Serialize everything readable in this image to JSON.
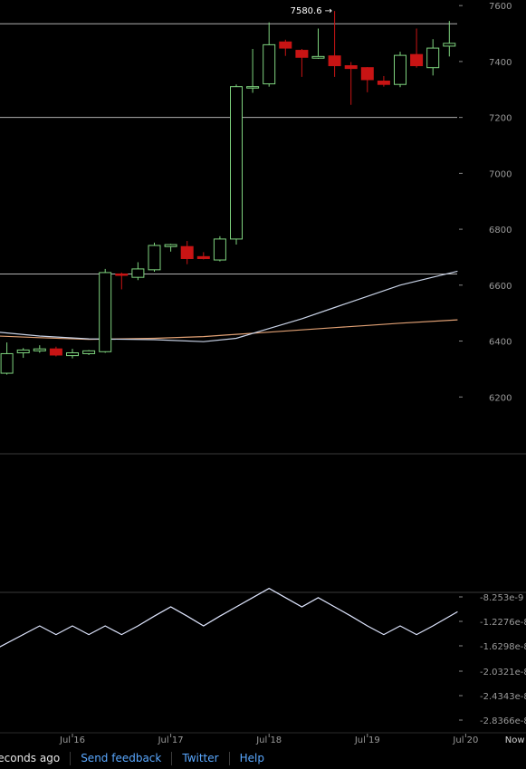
{
  "chart_data": [
    {
      "type": "candlestick",
      "title": "",
      "ylim": [
        6000,
        7620
      ],
      "yticks": [
        6200,
        6400,
        6600,
        6800,
        7000,
        7200,
        7400,
        7600
      ],
      "xticks": [
        {
          "label": "Jul 16",
          "x": 0
        },
        {
          "label": "Jul 17",
          "x": 6
        },
        {
          "label": "Jul 18",
          "x": 12
        },
        {
          "label": "Jul 19",
          "x": 18
        },
        {
          "label": "Jul 20",
          "x": 24
        },
        {
          "label": "Now",
          "x": 27
        }
      ],
      "candles": [
        {
          "x": -4,
          "o": 6285,
          "h": 6395,
          "l": 6280,
          "c": 6355
        },
        {
          "x": -3,
          "o": 6358,
          "h": 6375,
          "l": 6340,
          "c": 6368
        },
        {
          "x": -2,
          "o": 6365,
          "h": 6385,
          "l": 6358,
          "c": 6372
        },
        {
          "x": -1,
          "o": 6372,
          "h": 6380,
          "l": 6345,
          "c": 6350
        },
        {
          "x": 0,
          "o": 6348,
          "h": 6372,
          "l": 6338,
          "c": 6358
        },
        {
          "x": 1,
          "o": 6355,
          "h": 6368,
          "l": 6350,
          "c": 6365
        },
        {
          "x": 2,
          "o": 6362,
          "h": 6658,
          "l": 6358,
          "c": 6645
        },
        {
          "x": 3,
          "o": 6640,
          "h": 6645,
          "l": 6585,
          "c": 6635
        },
        {
          "x": 4,
          "o": 6628,
          "h": 6682,
          "l": 6618,
          "c": 6658
        },
        {
          "x": 5,
          "o": 6655,
          "h": 6752,
          "l": 6648,
          "c": 6742
        },
        {
          "x": 6,
          "o": 6738,
          "h": 6748,
          "l": 6720,
          "c": 6745
        },
        {
          "x": 7,
          "o": 6738,
          "h": 6758,
          "l": 6675,
          "c": 6695
        },
        {
          "x": 8,
          "o": 6702,
          "h": 6718,
          "l": 6692,
          "c": 6695
        },
        {
          "x": 9,
          "o": 6690,
          "h": 6775,
          "l": 6685,
          "c": 6765
        },
        {
          "x": 10,
          "o": 6765,
          "h": 7318,
          "l": 6745,
          "c": 7310
        },
        {
          "x": 11,
          "o": 7305,
          "h": 7445,
          "l": 7288,
          "c": 7310
        },
        {
          "x": 12,
          "o": 7320,
          "h": 7540,
          "l": 7310,
          "c": 7460
        },
        {
          "x": 13,
          "o": 7470,
          "h": 7478,
          "l": 7420,
          "c": 7448
        },
        {
          "x": 14,
          "o": 7440,
          "h": 7445,
          "l": 7345,
          "c": 7415
        },
        {
          "x": 15,
          "o": 7412,
          "h": 7518,
          "l": 7410,
          "c": 7418
        },
        {
          "x": 16,
          "o": 7420,
          "h": 7580.6,
          "l": 7345,
          "c": 7385
        },
        {
          "x": 17,
          "o": 7385,
          "h": 7398,
          "l": 7245,
          "c": 7375
        },
        {
          "x": 18,
          "o": 7378,
          "h": 7380,
          "l": 7290,
          "c": 7335
        },
        {
          "x": 19,
          "o": 7330,
          "h": 7348,
          "l": 7310,
          "c": 7318
        },
        {
          "x": 20,
          "o": 7318,
          "h": 7435,
          "l": 7308,
          "c": 7422
        },
        {
          "x": 21,
          "o": 7425,
          "h": 7518,
          "l": 7378,
          "c": 7385
        },
        {
          "x": 22,
          "o": 7378,
          "h": 7480,
          "l": 7350,
          "c": 7448
        },
        {
          "x": 23,
          "o": 7455,
          "h": 7545,
          "l": 7418,
          "c": 7465
        }
      ],
      "hlines": [
        7535,
        7200,
        6640
      ],
      "ma_white": [
        [
          -4.5,
          6432
        ],
        [
          -2,
          6418
        ],
        [
          1,
          6408
        ],
        [
          5,
          6405
        ],
        [
          8,
          6398
        ],
        [
          10,
          6410
        ],
        [
          12,
          6445
        ],
        [
          14,
          6480
        ],
        [
          16,
          6520
        ],
        [
          18,
          6560
        ],
        [
          20,
          6600
        ],
        [
          23.5,
          6650
        ]
      ],
      "ma_orange": [
        [
          -4.5,
          6418
        ],
        [
          -2,
          6412
        ],
        [
          1,
          6406
        ],
        [
          5,
          6410
        ],
        [
          8,
          6416
        ],
        [
          10,
          6424
        ],
        [
          12,
          6432
        ],
        [
          14,
          6440
        ],
        [
          16,
          6448
        ],
        [
          18,
          6456
        ],
        [
          20,
          6464
        ],
        [
          23.5,
          6476
        ]
      ],
      "high_annotation": {
        "label": "7580.6",
        "x": 16,
        "y": 7580.6,
        "color": "#ffffff"
      },
      "colors": {
        "up": "#7fd47f",
        "down": "#c81414",
        "hline": "#cfcfcf",
        "ma_white": "#c8d2e6",
        "ma_orange": "#e0a074",
        "axis": "#888888"
      }
    },
    {
      "type": "line",
      "ytick_labels": [
        "-8.253e-9",
        "-1.2276e-8",
        "-1.6298e-8",
        "-2.0321e-8",
        "-2.4343e-8",
        "-2.8366e-8"
      ],
      "x": [
        -4.5,
        -2,
        -1,
        0,
        1,
        2,
        3,
        4,
        5,
        6,
        7,
        8,
        9,
        10,
        11,
        12,
        13,
        14,
        15,
        16,
        17,
        18,
        19,
        20,
        21,
        22,
        23.5
      ],
      "values": [
        -15.8,
        -12.3,
        -13.7,
        -12.3,
        -13.7,
        -12.3,
        -13.7,
        -12.3,
        -10.7,
        -9.2,
        -10.7,
        -12.3,
        -10.7,
        -9.2,
        -7.7,
        -6.2,
        -7.7,
        -9.2,
        -7.7,
        -9.2,
        -10.7,
        -12.3,
        -13.7,
        -12.3,
        -13.7,
        -12.3,
        -10.0
      ],
      "value_scale": "1e-9",
      "ylim": [
        -29.5,
        -7.0
      ],
      "color": "#dfe6ff"
    }
  ],
  "footer": {
    "status": "seconds ago",
    "links": [
      "Send feedback",
      "Twitter",
      "Help"
    ]
  }
}
